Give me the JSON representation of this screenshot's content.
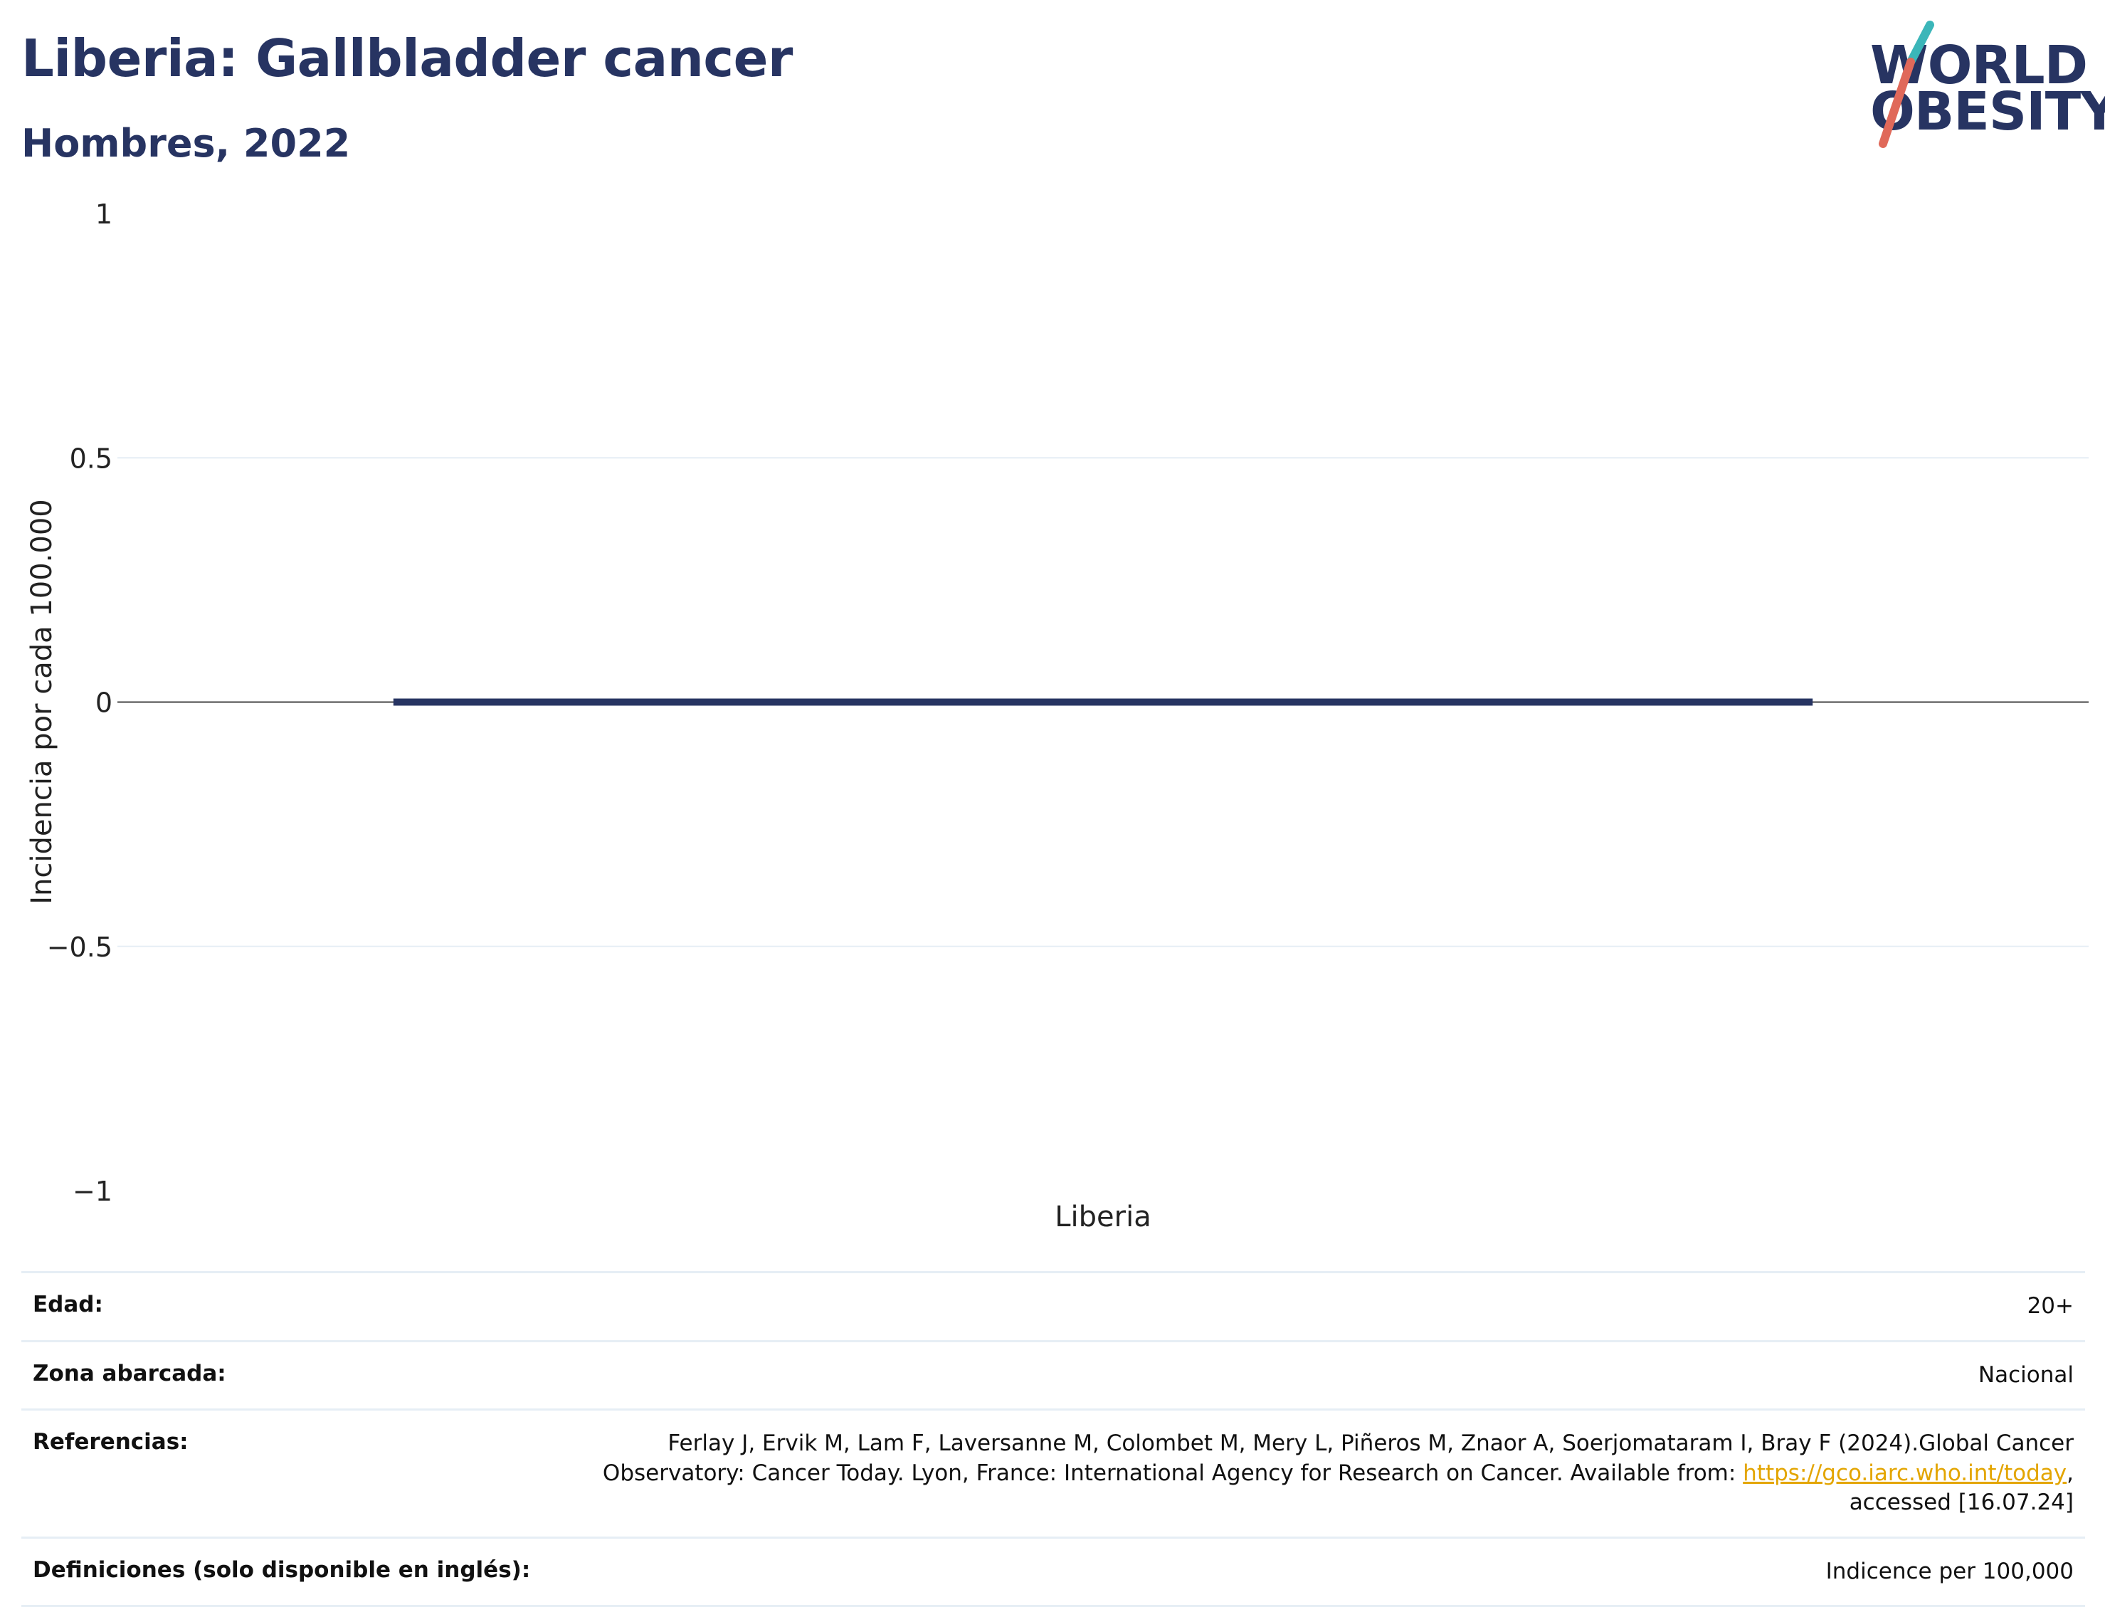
{
  "header": {
    "title": "Liberia: Gallbladder cancer",
    "subtitle": "Hombres, 2022"
  },
  "logo": {
    "line1": "WORLD",
    "line2": "OBESITY",
    "colors": {
      "text": "#273462",
      "slash_top": "#3bb6b9",
      "slash_bottom": "#e0695a"
    }
  },
  "chart_data": {
    "type": "bar",
    "categories": [
      "Liberia"
    ],
    "values": [
      0
    ],
    "title": "",
    "xlabel": "",
    "ylabel": "Incidencia por cada 100.000",
    "ylim": [
      -1,
      1
    ],
    "yticks": [
      "1",
      "0.5",
      "0",
      "−0.5",
      "−1"
    ],
    "ytick_values": [
      1,
      0.5,
      0,
      -0.5,
      -1
    ],
    "grid": true,
    "legend": "none",
    "bar_color": "#273462"
  },
  "info": {
    "age_label": "Edad:",
    "age_value": "20+",
    "area_label": "Zona abarcada:",
    "area_value": "Nacional",
    "ref_label": "Referencias:",
    "ref_text_1": "Ferlay J, Ervik M, Lam F, Laversanne M, Colombet M, Mery L, Piñeros M, Znaor A, Soerjomataram I, Bray F (2024).Global Cancer Observatory: Cancer Today. Lyon, France: International Agency for Research on Cancer. Available from: ",
    "ref_link": "https://gco.iarc.who.int/today",
    "ref_text_2": ", accessed [16.07.24]",
    "def_label": "Definiciones (solo disponible en inglés):",
    "def_value": "Indicence per 100,000"
  }
}
